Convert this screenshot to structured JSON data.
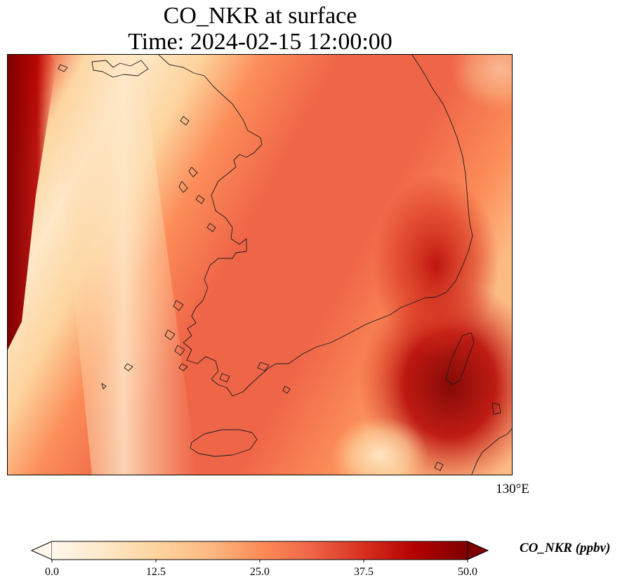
{
  "title": {
    "line1": "CO_NKR at surface",
    "line2": "Time: 2024-02-15 12:00:00"
  },
  "map": {
    "longitude_label": "130°E",
    "coastline_color": "#1a1a1a",
    "field_description": "surface CO concentration field over the Korean Peninsula, high (dark red) toward the west edge and southeast, low (pale) in a band over the Yellow Sea"
  },
  "colorbar": {
    "label": "CO_NKR (ppbv)",
    "colormap": "OrRd",
    "min": 0.0,
    "max": 50.0,
    "extend": "both",
    "ticks": [
      "0.0",
      "12.5",
      "25.0",
      "37.5",
      "50.0"
    ],
    "stops": [
      "#fff7ec",
      "#fee8c8",
      "#fdd49e",
      "#fdbb84",
      "#fc8d59",
      "#ef6548",
      "#d7301f",
      "#b30000",
      "#7f0000"
    ]
  }
}
